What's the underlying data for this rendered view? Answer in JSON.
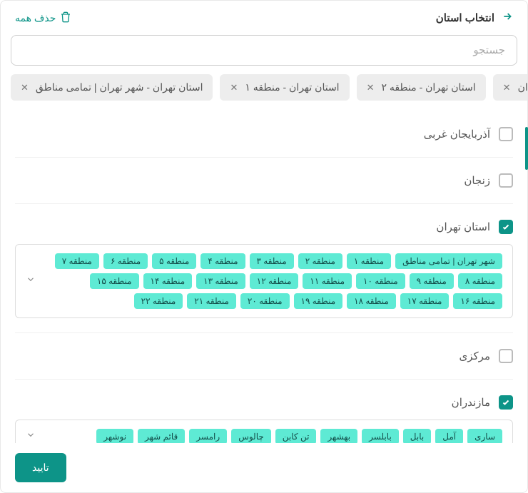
{
  "header": {
    "title": "انتخاب استان",
    "delete_all": "حذف همه"
  },
  "search": {
    "placeholder": "جستجو"
  },
  "selected_chips": [
    "استان تهران - شهر تهران | تمامی مناطق",
    "استان تهران - منطقه ۱",
    "استان تهران - منطقه ۲",
    "استان تهران"
  ],
  "provinces": [
    {
      "label": "آذربایجان غربی",
      "checked": false
    },
    {
      "label": "زنجان",
      "checked": false
    },
    {
      "label": "استان تهران",
      "checked": true
    },
    {
      "label": "مرکزی",
      "checked": false
    },
    {
      "label": "مازندران",
      "checked": true
    }
  ],
  "tehran_districts": [
    "شهر تهران | تمامی مناطق",
    "منطقه ۱",
    "منطقه ۲",
    "منطقه ۳",
    "منطقه ۴",
    "منطقه ۵",
    "منطقه ۶",
    "منطقه ۷",
    "منطقه ۸",
    "منطقه ۹",
    "منطقه ۱۰",
    "منطقه ۱۱",
    "منطقه ۱۲",
    "منطقه ۱۳",
    "منطقه ۱۴",
    "منطقه ۱۵",
    "منطقه ۱۶",
    "منطقه ۱۷",
    "منطقه ۱۸",
    "منطقه ۱۹",
    "منطقه ۲۰",
    "منطقه ۲۱",
    "منطقه ۲۲"
  ],
  "mazandaran_cities": [
    "ساری",
    "آمل",
    "بابل",
    "بابلسر",
    "بهشهر",
    "تن کابن",
    "چالوس",
    "رامسر",
    "قائم شهر",
    "نوشهر"
  ],
  "footer": {
    "confirm": "تایید"
  },
  "colors": {
    "accent": "#0d9488",
    "tag_bg": "#5eead4",
    "chip_bg": "#ededed"
  }
}
